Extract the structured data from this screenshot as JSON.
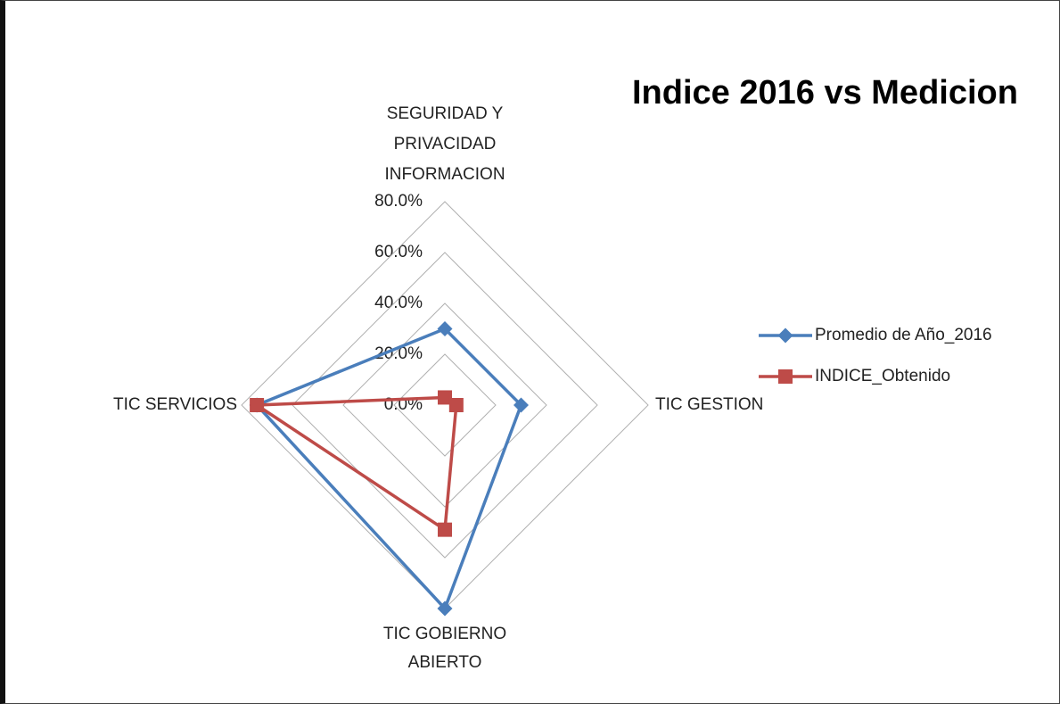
{
  "chart_data": {
    "type": "radar",
    "title": "Indice 2016 vs Medicion",
    "categories": [
      "SEGURIDAD Y PRIVACIDAD INFORMACION",
      "TIC GESTION",
      "TIC GOBIERNO ABIERTO",
      "TIC SERVICIOS"
    ],
    "series": [
      {
        "name": "Promedio de Año_2016",
        "color": "#4a7ebb",
        "values": [
          30,
          30,
          80,
          74
        ]
      },
      {
        "name": "INDICE_Obtenido",
        "color": "#be4b48",
        "values": [
          3,
          4.5,
          49,
          74
        ]
      }
    ],
    "ylim": [
      0,
      80
    ],
    "yticks": [
      {
        "value": 0,
        "label": "0.0%"
      },
      {
        "value": 20,
        "label": "20.0%"
      },
      {
        "value": 40,
        "label": "40.0%"
      },
      {
        "value": 60,
        "label": "60.0%"
      },
      {
        "value": 80,
        "label": "80.0%"
      }
    ],
    "grid": true,
    "legend": "right"
  }
}
